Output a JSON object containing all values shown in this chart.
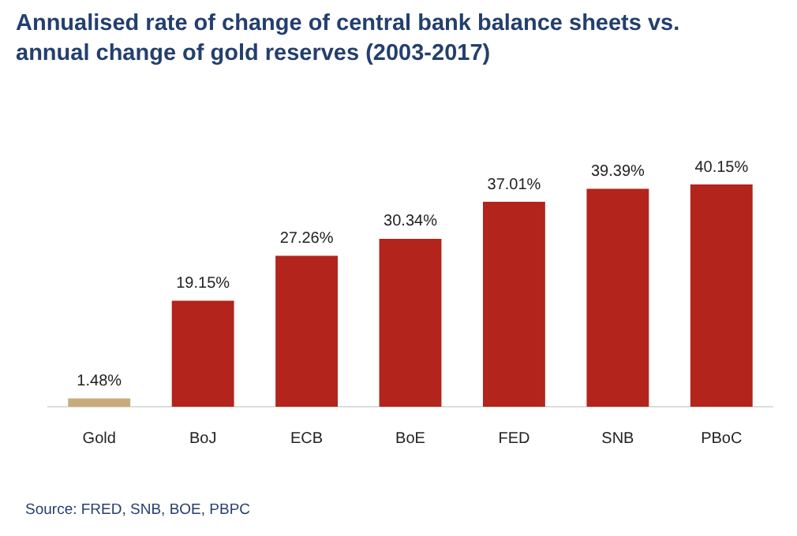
{
  "chart_data": {
    "type": "bar",
    "title": "Annualised rate of change of central bank balance sheets vs. annual change of gold reserves (2003-2017)",
    "categories": [
      "Gold",
      "BoJ",
      "ECB",
      "BoE",
      "FED",
      "SNB",
      "PBoC"
    ],
    "values": [
      1.48,
      19.15,
      27.26,
      30.34,
      37.01,
      39.39,
      40.15
    ],
    "value_labels": [
      "1.48%",
      "19.15%",
      "27.26%",
      "30.34%",
      "37.01%",
      "39.39%",
      "40.15%"
    ],
    "colors": [
      "#c8ab7c",
      "#b3241c",
      "#b3241c",
      "#b3241c",
      "#b3241c",
      "#b3241c",
      "#b3241c"
    ],
    "grid": false,
    "legend": false,
    "annotations": [
      "Source: FRED, SNB, BOE, PBPC"
    ]
  }
}
